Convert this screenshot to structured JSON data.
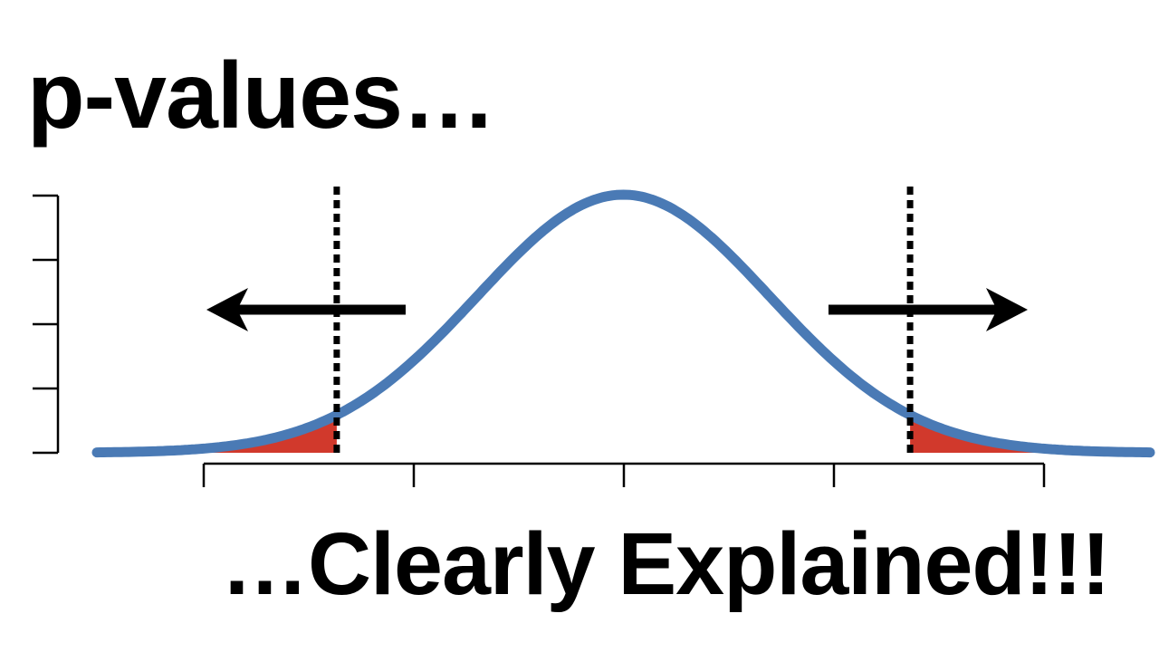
{
  "title": "p-values…",
  "subtitle": "…Clearly Explained!!!",
  "colors": {
    "curve": "#4a7ab5",
    "tail_fill": "#d1392c",
    "lines": "#000000",
    "background": "#ffffff"
  },
  "figure": {
    "curve_type": "normal-distribution",
    "curve_mean": 0,
    "curve_sd": 1,
    "x_range": [
      -3.6,
      3.6
    ],
    "cutoffs": [
      -1.96,
      1.96
    ],
    "shaded_tails": "both",
    "cutoff_line_style": "dotted",
    "x_tick_count": 5,
    "y_tick_count": 5,
    "arrows": [
      "left-arrow",
      "right-arrow"
    ]
  }
}
